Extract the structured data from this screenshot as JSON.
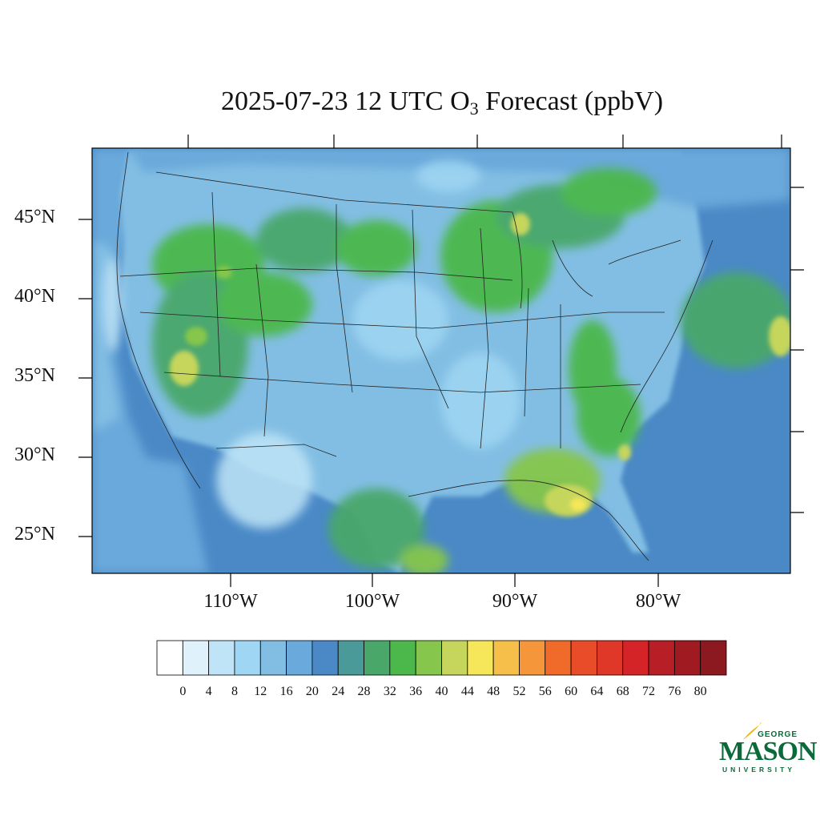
{
  "title": {
    "main": "2025-07-23 12 UTC O",
    "sub": "3",
    "tail": " Forecast (ppbV)"
  },
  "axes": {
    "lat_labels": [
      "45°N",
      "40°N",
      "35°N",
      "30°N",
      "25°N"
    ],
    "lon_labels": [
      "110°W",
      "100°W",
      "90°W",
      "80°W"
    ]
  },
  "colorbar": {
    "labels": [
      "0",
      "4",
      "8",
      "12",
      "16",
      "20",
      "24",
      "28",
      "32",
      "36",
      "40",
      "44",
      "48",
      "52",
      "56",
      "60",
      "64",
      "68",
      "72",
      "76",
      "80"
    ],
    "colors": [
      "#ffffff",
      "#dff1fb",
      "#bfe4f7",
      "#9fd6f3",
      "#82bee3",
      "#6aa9db",
      "#4a89c6",
      "#4a9a9a",
      "#4aa76a",
      "#4cb84c",
      "#86c64c",
      "#c6d65c",
      "#f5e65a",
      "#f5bf4a",
      "#f5963a",
      "#f06a2a",
      "#e84c28",
      "#e03828",
      "#d42428",
      "#b81e26",
      "#a01a22",
      "#8c1820"
    ]
  },
  "logo": {
    "line1": "GEORGE",
    "line2": "MASON",
    "line3": "UNIVERSITY"
  },
  "colors": {
    "ocean": "#4a89c6",
    "land_low": "#82bee3",
    "land_high": "#4cb84c"
  }
}
